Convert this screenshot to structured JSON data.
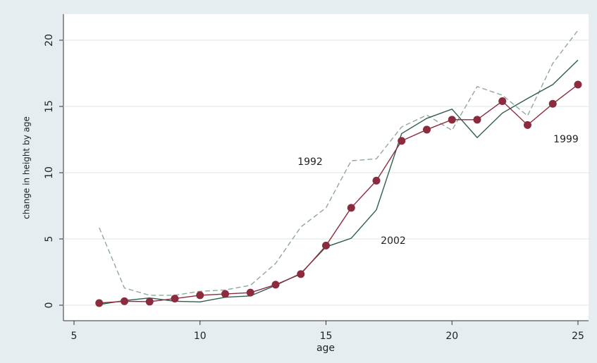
{
  "chart_data": {
    "type": "line",
    "x_label": "age",
    "y_label": "change in height by age",
    "x": [
      6,
      7,
      8,
      9,
      10,
      11,
      12,
      13,
      14,
      15,
      16,
      17,
      18,
      19,
      20,
      21,
      22,
      23,
      24,
      25
    ],
    "series": [
      {
        "name": "1992",
        "color": "#8fa89a",
        "dash": true,
        "markers": false,
        "values": [
          5.85,
          1.3,
          0.75,
          0.75,
          1.05,
          1.15,
          1.5,
          3.15,
          5.9,
          7.35,
          10.9,
          11.05,
          13.45,
          14.35,
          13.2,
          16.5,
          15.85,
          14.3,
          18.25,
          20.75
        ]
      },
      {
        "name": "2002",
        "color": "#2e5e50",
        "dash": false,
        "markers": false,
        "values": [
          0.05,
          0.35,
          0.55,
          0.3,
          0.25,
          0.6,
          0.7,
          1.5,
          2.4,
          4.4,
          5.05,
          7.2,
          12.95,
          14.1,
          14.8,
          12.65,
          14.5,
          15.6,
          16.65,
          18.5
        ]
      },
      {
        "name": "1999",
        "color": "#8b2c3e",
        "dash": false,
        "markers": true,
        "values": [
          0.16,
          0.3,
          0.27,
          0.5,
          0.75,
          0.85,
          0.95,
          1.55,
          2.35,
          4.5,
          7.35,
          9.4,
          12.4,
          13.25,
          14.0,
          14.0,
          15.4,
          13.6,
          15.2,
          16.65
        ]
      }
    ],
    "xlim": [
      4.58,
      25.42
    ],
    "xticks": [
      5,
      10,
      15,
      20,
      25
    ],
    "ylim": [
      -1.17,
      21.97
    ],
    "yticks": [
      0,
      5,
      10,
      15,
      20
    ],
    "grid": true
  }
}
